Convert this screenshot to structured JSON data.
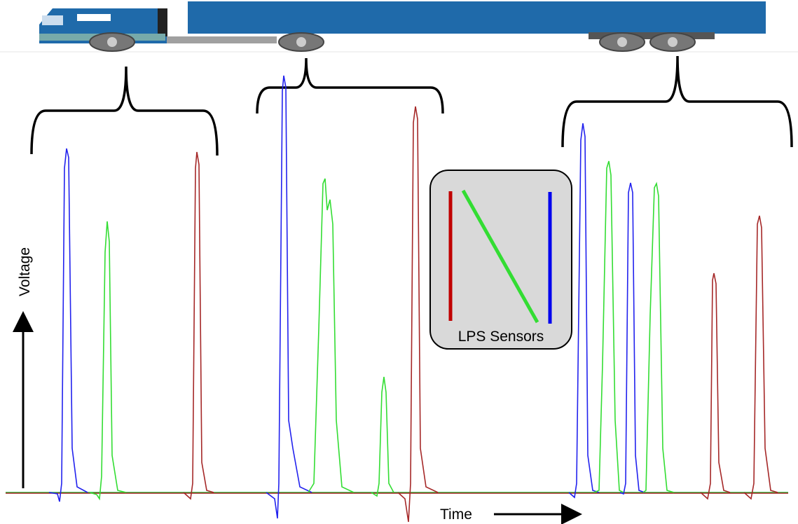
{
  "labels": {
    "voltage": "Voltage",
    "time": "Time",
    "sensors": "LPS Sensors"
  }
}
